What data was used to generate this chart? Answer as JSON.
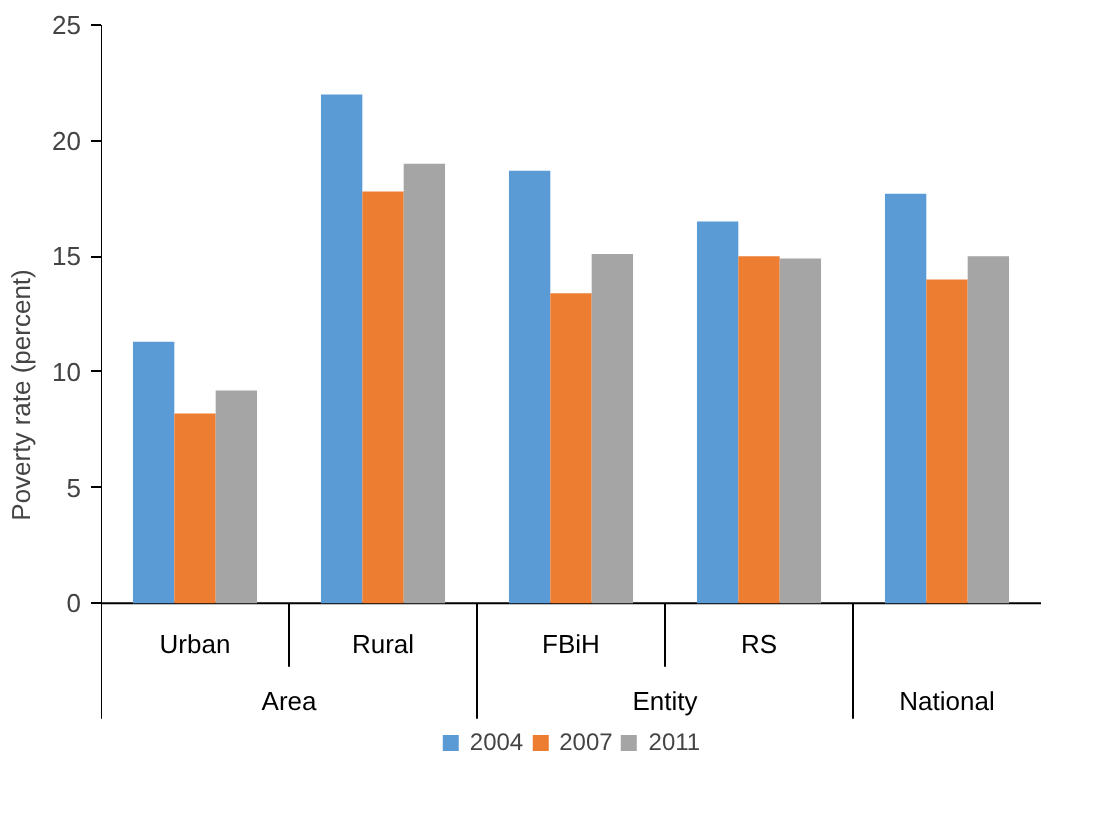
{
  "chart_data": {
    "type": "bar",
    "ylabel": "Poverty rate (percent)",
    "categories": [
      "Urban",
      "Rural",
      "FBiH",
      "RS",
      null
    ],
    "annotations": [
      "Area",
      "Entity",
      "National"
    ],
    "series": [
      {
        "name": "2004",
        "color": "#5b9bd5",
        "values": [
          11.3,
          22.0,
          18.7,
          16.5,
          17.7
        ]
      },
      {
        "name": "2007",
        "color": "#ed7d31",
        "values": [
          8.2,
          17.8,
          13.4,
          15.0,
          14.0
        ]
      },
      {
        "name": "2011",
        "color": "#a5a5a5",
        "values": [
          9.2,
          19.0,
          15.1,
          14.9,
          15.0
        ]
      }
    ],
    "ylim": [
      0,
      25
    ],
    "yticks": [
      0,
      5,
      10,
      15,
      20,
      25
    ],
    "grid": false,
    "legend": "bottom"
  }
}
